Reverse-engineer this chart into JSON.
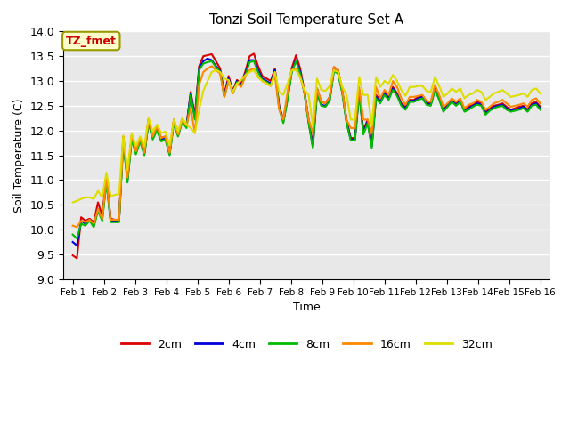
{
  "title": "Tonzi Soil Temperature Set A",
  "xlabel": "Time",
  "ylabel": "Soil Temperature (C)",
  "annotation": "TZ_fmet",
  "ylim": [
    9.0,
    14.0
  ],
  "yticks": [
    9.0,
    9.5,
    10.0,
    10.5,
    11.0,
    11.5,
    12.0,
    12.5,
    13.0,
    13.5,
    14.0
  ],
  "xlabels": [
    "Feb 1",
    "Feb 2",
    "Feb 3",
    "Feb 4",
    "Feb 5",
    "Feb 6",
    "Feb 7",
    "Feb 8",
    "Feb 9",
    "Feb 10",
    "Feb 11",
    "Feb 12",
    "Feb 13",
    "Feb 14",
    "Feb 15",
    "Feb 16"
  ],
  "colors": {
    "2cm": "#dd0000",
    "4cm": "#0000dd",
    "8cm": "#00bb00",
    "16cm": "#ff8800",
    "32cm": "#dddd00"
  },
  "background_color": "#e8e8e8",
  "data_2cm": [
    9.48,
    9.42,
    10.25,
    10.18,
    10.22,
    10.15,
    10.55,
    10.28,
    11.05,
    10.22,
    10.2,
    10.2,
    11.88,
    11.05,
    11.9,
    11.6,
    11.85,
    11.55,
    12.23,
    11.88,
    12.05,
    11.85,
    11.88,
    11.55,
    12.22,
    11.95,
    12.23,
    12.1,
    12.78,
    12.3,
    13.3,
    13.5,
    13.52,
    13.54,
    13.4,
    13.25,
    12.75,
    13.1,
    12.8,
    13.02,
    12.95,
    13.2,
    13.5,
    13.55,
    13.3,
    13.1,
    13.05,
    13.0,
    13.25,
    12.5,
    12.22,
    12.7,
    13.26,
    13.52,
    13.25,
    12.8,
    12.22,
    11.72,
    12.85,
    12.58,
    12.55,
    12.68,
    13.28,
    13.22,
    12.8,
    12.22,
    11.85,
    11.85,
    12.82,
    12.0,
    12.22,
    11.72,
    12.72,
    12.62,
    12.78,
    12.68,
    12.88,
    12.75,
    12.55,
    12.48,
    12.62,
    12.62,
    12.68,
    12.7,
    12.58,
    12.55,
    12.88,
    12.68,
    12.42,
    12.52,
    12.62,
    12.55,
    12.62,
    12.42,
    12.48,
    12.52,
    12.58,
    12.55,
    12.38,
    12.45,
    12.5,
    12.52,
    12.55,
    12.48,
    12.42,
    12.45,
    12.48,
    12.5,
    12.42,
    12.55,
    12.58,
    12.48
  ],
  "data_4cm": [
    9.75,
    9.68,
    10.18,
    10.12,
    10.2,
    10.1,
    10.42,
    10.22,
    11.0,
    10.18,
    10.18,
    10.18,
    11.82,
    11.0,
    11.85,
    11.55,
    11.82,
    11.52,
    12.18,
    11.85,
    12.02,
    11.82,
    11.85,
    11.52,
    12.18,
    11.9,
    12.2,
    12.08,
    12.75,
    12.25,
    13.25,
    13.4,
    13.45,
    13.42,
    13.3,
    13.2,
    12.7,
    13.05,
    12.78,
    13.0,
    12.92,
    13.15,
    13.42,
    13.42,
    13.22,
    13.05,
    13.0,
    12.95,
    13.22,
    12.48,
    12.18,
    12.65,
    13.2,
    13.42,
    13.18,
    12.78,
    12.18,
    11.68,
    12.78,
    12.52,
    12.5,
    12.62,
    13.22,
    13.18,
    12.78,
    12.18,
    11.82,
    11.82,
    12.78,
    11.95,
    12.18,
    11.68,
    12.68,
    12.58,
    12.75,
    12.65,
    12.85,
    12.72,
    12.52,
    12.45,
    12.6,
    12.6,
    12.65,
    12.68,
    12.55,
    12.52,
    12.85,
    12.65,
    12.4,
    12.5,
    12.6,
    12.52,
    12.6,
    12.4,
    12.45,
    12.5,
    12.55,
    12.52,
    12.35,
    12.42,
    12.48,
    12.5,
    12.52,
    12.45,
    12.4,
    12.42,
    12.45,
    12.48,
    12.4,
    12.52,
    12.55,
    12.45
  ],
  "data_8cm": [
    9.9,
    9.82,
    10.12,
    10.08,
    10.18,
    10.05,
    10.38,
    10.18,
    10.95,
    10.15,
    10.15,
    10.15,
    11.78,
    10.95,
    11.82,
    11.52,
    11.78,
    11.5,
    12.15,
    11.82,
    12.0,
    11.78,
    11.82,
    11.5,
    12.15,
    11.88,
    12.18,
    12.05,
    12.72,
    12.22,
    13.22,
    13.35,
    13.38,
    13.4,
    13.28,
    13.18,
    12.68,
    13.02,
    12.75,
    12.98,
    12.9,
    13.12,
    13.38,
    13.4,
    13.18,
    13.02,
    12.98,
    12.92,
    13.18,
    12.45,
    12.15,
    12.62,
    13.18,
    13.4,
    13.15,
    12.75,
    12.15,
    11.65,
    12.75,
    12.5,
    12.48,
    12.6,
    13.2,
    13.15,
    12.75,
    12.15,
    11.8,
    11.8,
    12.75,
    11.92,
    12.15,
    11.65,
    12.65,
    12.55,
    12.72,
    12.62,
    12.82,
    12.7,
    12.5,
    12.42,
    12.58,
    12.58,
    12.62,
    12.65,
    12.52,
    12.5,
    12.82,
    12.62,
    12.38,
    12.48,
    12.58,
    12.5,
    12.58,
    12.38,
    12.42,
    12.48,
    12.52,
    12.5,
    12.32,
    12.4,
    12.45,
    12.48,
    12.5,
    12.42,
    12.38,
    12.4,
    12.42,
    12.45,
    12.38,
    12.5,
    12.52,
    12.42
  ],
  "data_16cm": [
    10.08,
    10.05,
    10.18,
    10.15,
    10.2,
    10.12,
    10.42,
    10.22,
    11.05,
    10.2,
    10.2,
    10.2,
    11.85,
    11.05,
    11.9,
    11.58,
    11.85,
    11.55,
    12.22,
    11.88,
    12.08,
    11.85,
    11.88,
    11.55,
    12.2,
    11.92,
    12.22,
    12.1,
    12.45,
    11.95,
    12.92,
    13.18,
    13.25,
    13.3,
    13.22,
    13.15,
    12.68,
    13.0,
    12.75,
    12.95,
    12.88,
    13.1,
    13.22,
    13.25,
    13.08,
    13.0,
    12.95,
    12.9,
    13.12,
    12.42,
    12.22,
    12.78,
    13.22,
    13.25,
    13.08,
    12.78,
    12.22,
    11.95,
    12.85,
    12.58,
    12.55,
    12.68,
    13.28,
    13.22,
    12.82,
    12.22,
    12.05,
    12.05,
    12.88,
    12.22,
    12.22,
    11.95,
    12.88,
    12.65,
    12.82,
    12.72,
    13.0,
    12.88,
    12.65,
    12.52,
    12.68,
    12.68,
    12.7,
    12.72,
    12.6,
    12.58,
    12.92,
    12.72,
    12.48,
    12.55,
    12.65,
    12.58,
    12.65,
    12.45,
    12.52,
    12.55,
    12.62,
    12.58,
    12.42,
    12.48,
    12.55,
    12.58,
    12.62,
    12.55,
    12.48,
    12.5,
    12.52,
    12.55,
    12.48,
    12.62,
    12.65,
    12.55
  ],
  "data_32cm": [
    10.55,
    10.58,
    10.62,
    10.65,
    10.65,
    10.62,
    10.78,
    10.65,
    11.15,
    10.68,
    10.7,
    10.72,
    11.9,
    11.2,
    11.95,
    11.68,
    11.88,
    11.68,
    12.25,
    11.98,
    12.12,
    11.95,
    11.98,
    11.7,
    12.22,
    11.98,
    12.25,
    12.12,
    12.05,
    11.95,
    12.42,
    12.8,
    13.0,
    13.18,
    13.22,
    13.18,
    13.05,
    13.02,
    12.78,
    12.95,
    13.02,
    13.12,
    13.18,
    13.22,
    13.08,
    13.0,
    12.95,
    12.9,
    13.18,
    12.78,
    12.72,
    12.95,
    13.22,
    13.22,
    13.08,
    12.82,
    12.72,
    12.1,
    13.05,
    12.82,
    12.8,
    12.9,
    13.22,
    13.18,
    12.88,
    12.72,
    12.22,
    12.22,
    13.08,
    12.72,
    12.72,
    12.1,
    13.08,
    12.88,
    13.0,
    12.95,
    13.12,
    13.0,
    12.82,
    12.7,
    12.88,
    12.88,
    12.9,
    12.9,
    12.8,
    12.78,
    13.08,
    12.9,
    12.68,
    12.75,
    12.85,
    12.78,
    12.85,
    12.65,
    12.72,
    12.75,
    12.82,
    12.78,
    12.62,
    12.68,
    12.75,
    12.78,
    12.82,
    12.75,
    12.68,
    12.7,
    12.72,
    12.75,
    12.68,
    12.82,
    12.85,
    12.75
  ]
}
